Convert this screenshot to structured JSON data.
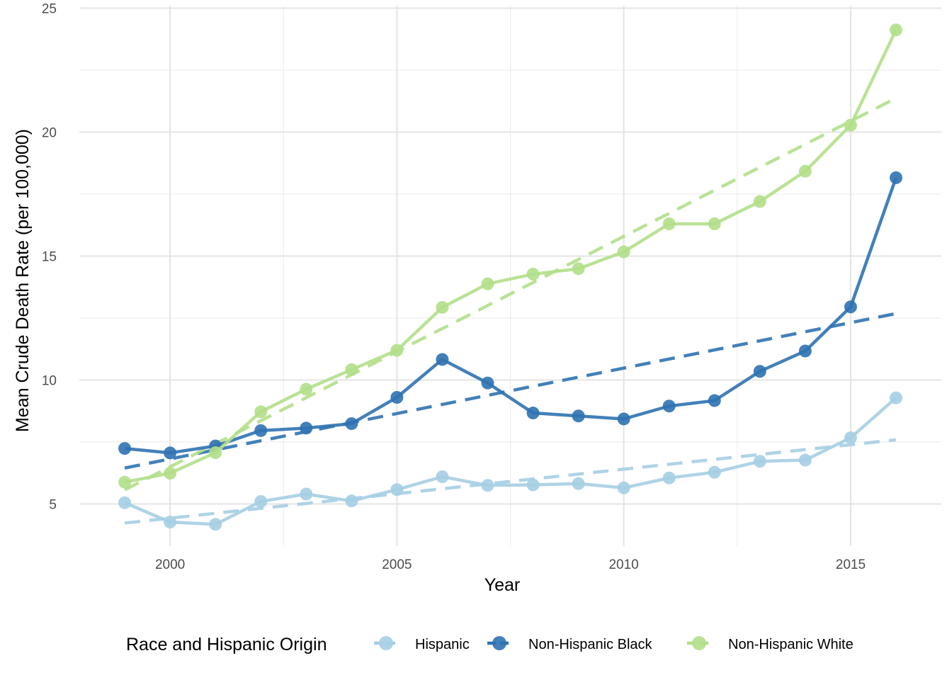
{
  "chart_data": {
    "type": "line",
    "title": "",
    "xlabel": "Year",
    "ylabel": "Mean Crude Death Rate (per 100,000)",
    "xlim": [
      1998.0,
      2017.0
    ],
    "ylim": [
      3.3,
      25.1
    ],
    "x_ticks": [
      2000,
      2005,
      2010,
      2015
    ],
    "x_tick_labels": [
      "2000",
      "2005",
      "2010",
      "2015"
    ],
    "y_ticks": [
      5,
      10,
      15,
      20,
      25
    ],
    "y_tick_labels": [
      "5",
      "10",
      "15",
      "20",
      "25"
    ],
    "grid": true,
    "legend": {
      "title": "Race and Hispanic Origin",
      "position": "bottom"
    },
    "x": [
      1999,
      2000,
      2001,
      2002,
      2003,
      2004,
      2005,
      2006,
      2007,
      2008,
      2009,
      2010,
      2011,
      2012,
      2013,
      2014,
      2015,
      2016
    ],
    "series": [
      {
        "name": "Hispanic",
        "color": "#a6cee3",
        "values": [
          5.05,
          4.27,
          4.18,
          5.1,
          5.4,
          5.12,
          5.58,
          6.1,
          5.75,
          5.77,
          5.82,
          5.65,
          6.05,
          6.28,
          6.72,
          6.77,
          7.67,
          9.28
        ],
        "trend": [
          4.23,
          7.59
        ]
      },
      {
        "name": "Non-Hispanic Black",
        "color": "#2f72b1",
        "values": [
          7.24,
          7.06,
          7.34,
          7.96,
          8.06,
          8.24,
          9.3,
          10.83,
          9.88,
          8.67,
          8.55,
          8.43,
          8.95,
          9.17,
          10.35,
          11.17,
          12.95,
          18.16
        ],
        "trend": [
          6.45,
          12.68
        ]
      },
      {
        "name": "Non-Hispanic White",
        "color": "#b2df8a",
        "values": [
          5.88,
          6.24,
          7.07,
          8.72,
          9.63,
          10.42,
          11.2,
          12.93,
          13.88,
          14.27,
          14.49,
          15.17,
          16.3,
          16.3,
          17.2,
          18.42,
          20.28,
          24.12
        ],
        "trend": [
          5.57,
          21.37
        ]
      }
    ]
  }
}
